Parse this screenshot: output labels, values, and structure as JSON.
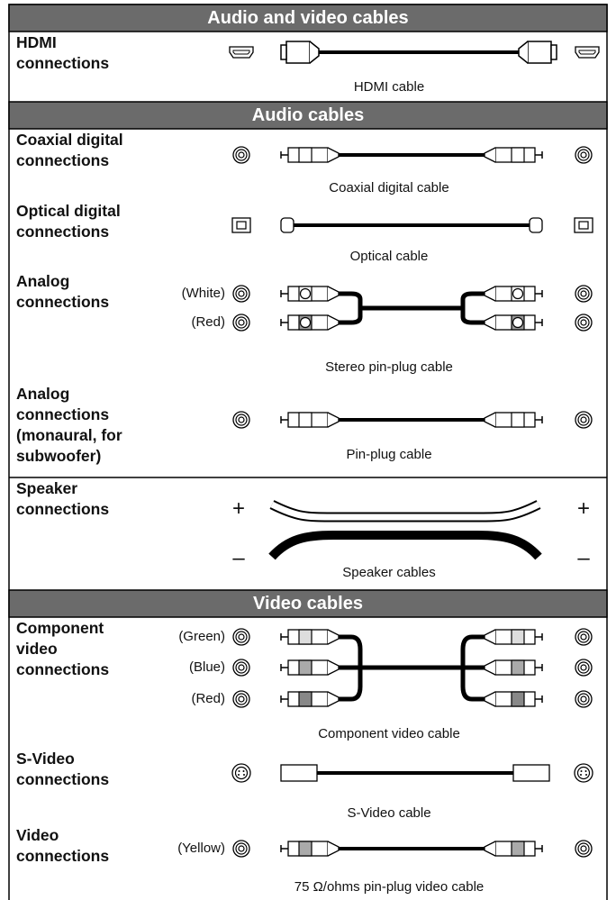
{
  "sections": [
    {
      "title": "Audio and video cables",
      "rows": [
        {
          "label": [
            "HDMI",
            "connections"
          ],
          "caption": "HDMI cable"
        }
      ]
    },
    {
      "title": "Audio cables",
      "rows": [
        {
          "label": [
            "Coaxial digital",
            "connections"
          ],
          "caption": "Coaxial digital cable"
        },
        {
          "label": [
            "Optical digital",
            "connections"
          ],
          "caption": "Optical cable"
        },
        {
          "label": [
            "Analog",
            "connections"
          ],
          "channels": [
            "(White)",
            "(Red)"
          ],
          "caption": "Stereo pin-plug cable"
        },
        {
          "label": [
            "Analog",
            "connections",
            "(monaural, for",
            "subwoofer)"
          ],
          "caption": "Pin-plug cable"
        },
        {
          "label": [
            "Speaker",
            "connections"
          ],
          "terminals": [
            "+",
            "–"
          ],
          "caption": "Speaker cables"
        }
      ]
    },
    {
      "title": "Video cables",
      "rows": [
        {
          "label": [
            "Component",
            "video",
            "connections"
          ],
          "channels": [
            "(Green)",
            "(Blue)",
            "(Red)"
          ],
          "caption": "Component video cable"
        },
        {
          "label": [
            "S-Video",
            "connections"
          ],
          "caption": "S-Video cable"
        },
        {
          "label": [
            "Video",
            "connections"
          ],
          "channels": [
            "(Yellow)"
          ],
          "caption": "75 Ω/ohms pin-plug video cable"
        }
      ]
    }
  ]
}
